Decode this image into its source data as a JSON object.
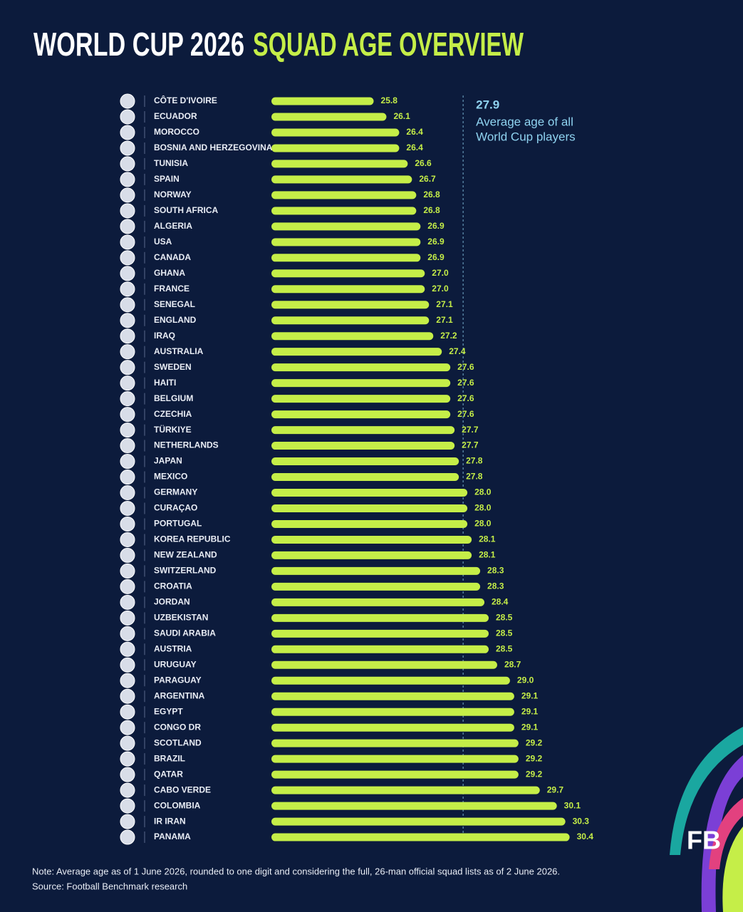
{
  "chart_data": {
    "type": "bar",
    "orientation": "horizontal",
    "title_part1": "WORLD CUP 2026",
    "title_part2": "SQUAD AGE OVERVIEW",
    "categories": [
      "CÔTE D'IVOIRE",
      "ECUADOR",
      "MOROCCO",
      "BOSNIA AND HERZEGOVINA",
      "TUNISIA",
      "SPAIN",
      "NORWAY",
      "SOUTH AFRICA",
      "ALGERIA",
      "USA",
      "CANADA",
      "GHANA",
      "FRANCE",
      "SENEGAL",
      "ENGLAND",
      "IRAQ",
      "AUSTRALIA",
      "SWEDEN",
      "HAITI",
      "BELGIUM",
      "CZECHIA",
      "TÜRKIYE",
      "NETHERLANDS",
      "JAPAN",
      "MEXICO",
      "GERMANY",
      "CURAÇAO",
      "PORTUGAL",
      "KOREA REPUBLIC",
      "NEW ZEALAND",
      "SWITZERLAND",
      "CROATIA",
      "JORDAN",
      "UZBEKISTAN",
      "SAUDI ARABIA",
      "AUSTRIA",
      "URUGUAY",
      "PARAGUAY",
      "ARGENTINA",
      "EGYPT",
      "CONGO DR",
      "SCOTLAND",
      "BRAZIL",
      "QATAR",
      "CABO VERDE",
      "COLOMBIA",
      "IR IRAN",
      "PANAMA"
    ],
    "values": [
      25.8,
      26.1,
      26.4,
      26.4,
      26.6,
      26.7,
      26.8,
      26.8,
      26.9,
      26.9,
      26.9,
      27.0,
      27.0,
      27.1,
      27.1,
      27.2,
      27.4,
      27.6,
      27.6,
      27.6,
      27.6,
      27.7,
      27.7,
      27.8,
      27.8,
      28.0,
      28.0,
      28.0,
      28.1,
      28.1,
      28.3,
      28.3,
      28.4,
      28.5,
      28.5,
      28.5,
      28.7,
      29.0,
      29.1,
      29.1,
      29.1,
      29.2,
      29.2,
      29.2,
      29.7,
      30.1,
      30.3,
      30.4
    ],
    "value_labels": [
      "25.8",
      "26.1",
      "26.4",
      "26.4",
      "26.6",
      "26.7",
      "26.8",
      "26.8",
      "26.9",
      "26.9",
      "26.9",
      "27.0",
      "27.0",
      "27.1",
      "27.1",
      "27.2",
      "27.4",
      "27.6",
      "27.6",
      "27.6",
      "27.6",
      "27.7",
      "27.7",
      "27.8",
      "27.8",
      "28.0",
      "28.0",
      "28.0",
      "28.1",
      "28.1",
      "28.3",
      "28.3",
      "28.4",
      "28.5",
      "28.5",
      "28.5",
      "28.7",
      "29.0",
      "29.1",
      "29.1",
      "29.1",
      "29.2",
      "29.2",
      "29.2",
      "29.7",
      "30.1",
      "30.3",
      "30.4"
    ],
    "color": "#c5ee48",
    "xlim": [
      23.4,
      31.0
    ],
    "average": 27.9,
    "average_label_lines": [
      "Average age of all",
      "World Cup players"
    ],
    "note": "Note: Average age as of 1 June 2026, rounded to one digit and considering the full, 26-man official squad lists as of 2 June 2026.",
    "source": "Source: Football Benchmark research",
    "logo": "FB"
  }
}
